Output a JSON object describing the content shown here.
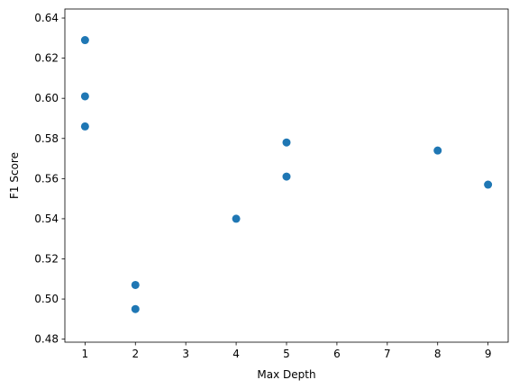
{
  "chart_data": {
    "type": "scatter",
    "title": "",
    "xlabel": "Max Depth",
    "ylabel": "F1 Score",
    "xlim": [
      0.6,
      9.4
    ],
    "ylim": [
      0.4785,
      0.6445
    ],
    "grid": false,
    "x_ticks": [
      1,
      2,
      3,
      4,
      5,
      6,
      7,
      8,
      9
    ],
    "y_ticks": [
      0.48,
      0.5,
      0.52,
      0.54,
      0.56,
      0.58,
      0.6,
      0.62,
      0.64
    ],
    "point_color": "#1f77b4",
    "series": [
      {
        "points": [
          {
            "x": 1,
            "y": 0.629
          },
          {
            "x": 1,
            "y": 0.601
          },
          {
            "x": 1,
            "y": 0.586
          },
          {
            "x": 2,
            "y": 0.507
          },
          {
            "x": 2,
            "y": 0.495
          },
          {
            "x": 4,
            "y": 0.54
          },
          {
            "x": 5,
            "y": 0.578
          },
          {
            "x": 5,
            "y": 0.561
          },
          {
            "x": 8,
            "y": 0.574
          },
          {
            "x": 9,
            "y": 0.557
          }
        ]
      }
    ]
  }
}
